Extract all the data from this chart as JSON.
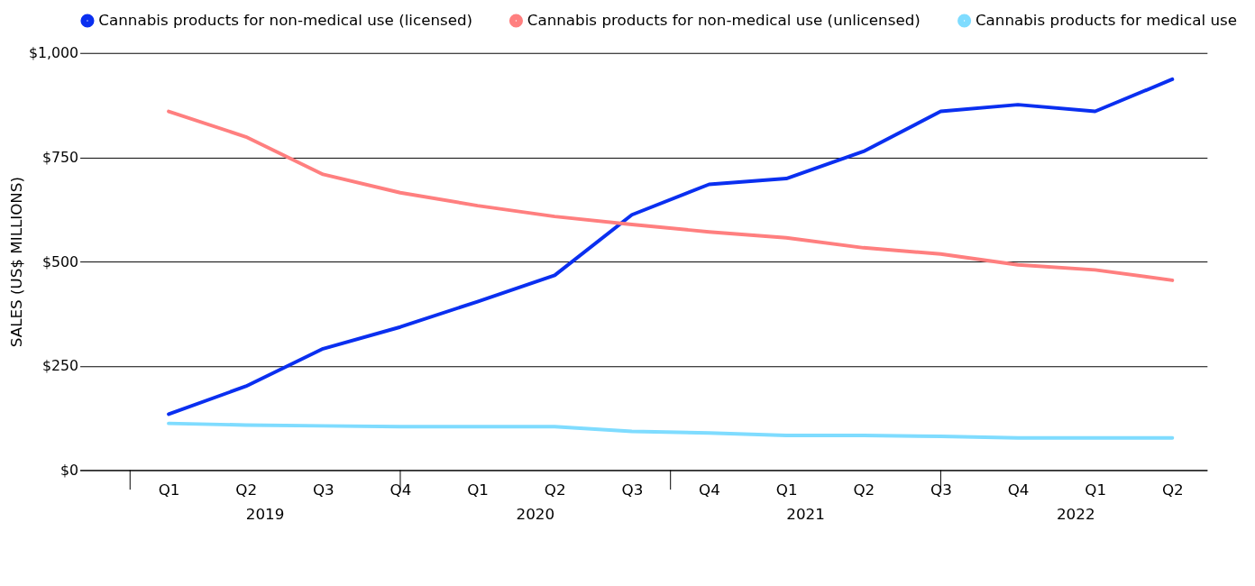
{
  "chart_data": {
    "type": "line",
    "ylabel": "SALES (US$ MILLIONS)",
    "categories": [
      "Q1",
      "Q2",
      "Q3",
      "Q4",
      "Q1",
      "Q2",
      "Q3",
      "Q4",
      "Q1",
      "Q2",
      "Q3",
      "Q4",
      "Q1",
      "Q2"
    ],
    "annotations": [
      "2019",
      "2020",
      "2021",
      "2022"
    ],
    "series": [
      {
        "name": "Cannabis products for non-medical use (licensed)",
        "color": "#0a2ff0",
        "values": [
          134,
          201,
          291,
          343,
          404,
          467,
          612,
          685,
          699,
          764,
          860,
          876,
          860,
          937
        ]
      },
      {
        "name": "Cannabis products for non-medical use (unlicensed)",
        "color": "#ff7f7f",
        "values": [
          860,
          799,
          709,
          665,
          634,
          608,
          589,
          571,
          557,
          533,
          518,
          492,
          480,
          455
        ]
      },
      {
        "name": "Cannabis products for medical use",
        "color": "#7fdcff",
        "values": [
          112,
          108,
          106,
          104,
          104,
          104,
          93,
          89,
          83,
          83,
          81,
          77,
          77,
          77
        ]
      }
    ],
    "ylim": [
      0,
      1000
    ],
    "yticks": [
      {
        "value": 0,
        "label": "$0"
      },
      {
        "value": 250,
        "label": "$250"
      },
      {
        "value": 500,
        "label": "$500"
      },
      {
        "value": 750,
        "label": "$750"
      },
      {
        "value": 1000,
        "label": "$1,000"
      }
    ],
    "grid": "y",
    "legend": "top",
    "marker": "none",
    "line_style": "solid"
  }
}
